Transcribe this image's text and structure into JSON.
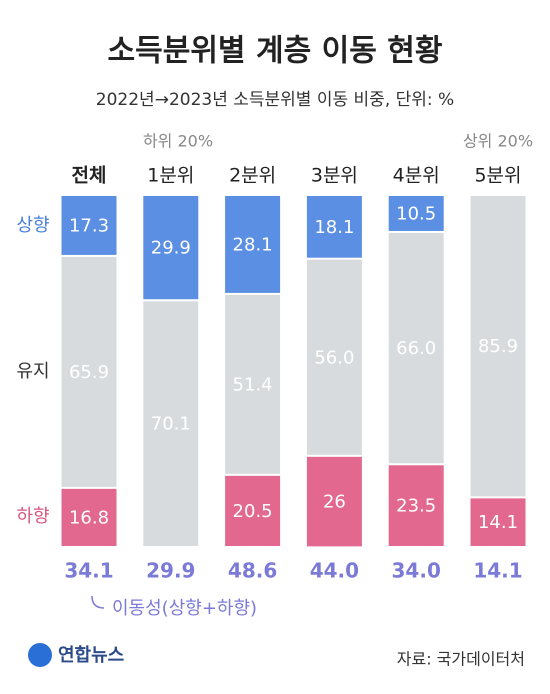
{
  "chart_data": {
    "type": "stacked-bar",
    "title": "소득분위별 계층 이동 현황",
    "subtitle": "2022년→2023년 소득분위별 이동 비중, 단위: %",
    "categories": [
      "전체",
      "1분위",
      "2분위",
      "3분위",
      "4분위",
      "5분위"
    ],
    "annotations": [
      "하위 20%",
      "상위 20%"
    ],
    "ylim": [
      0,
      100
    ],
    "series": [
      {
        "name": "상향",
        "color": "#5b8fe3",
        "values": [
          17.3,
          29.9,
          28.1,
          18.1,
          10.5,
          null
        ]
      },
      {
        "name": "유지",
        "color": "#d8dbde",
        "values": [
          65.9,
          70.1,
          51.4,
          56.0,
          66.0,
          85.9
        ],
        "value_labels": [
          "65.9",
          "70.1",
          "51.4",
          "56.0",
          "66.0",
          "85.9"
        ]
      },
      {
        "name": "하향",
        "color": "#e3688f",
        "values": [
          16.8,
          null,
          20.5,
          26.0,
          23.5,
          14.1
        ]
      }
    ],
    "mobility": {
      "name": "이동성(상향+하향)",
      "color": "#7b7ad6",
      "values": [
        34.1,
        29.9,
        48.6,
        44.0,
        34.0,
        14.1
      ],
      "value_labels": [
        "34.1",
        "29.9",
        "48.6",
        "44.0",
        "34.0",
        "14.1"
      ]
    },
    "logo": "연합뉴스",
    "source": "자료: 국가데이터처"
  }
}
